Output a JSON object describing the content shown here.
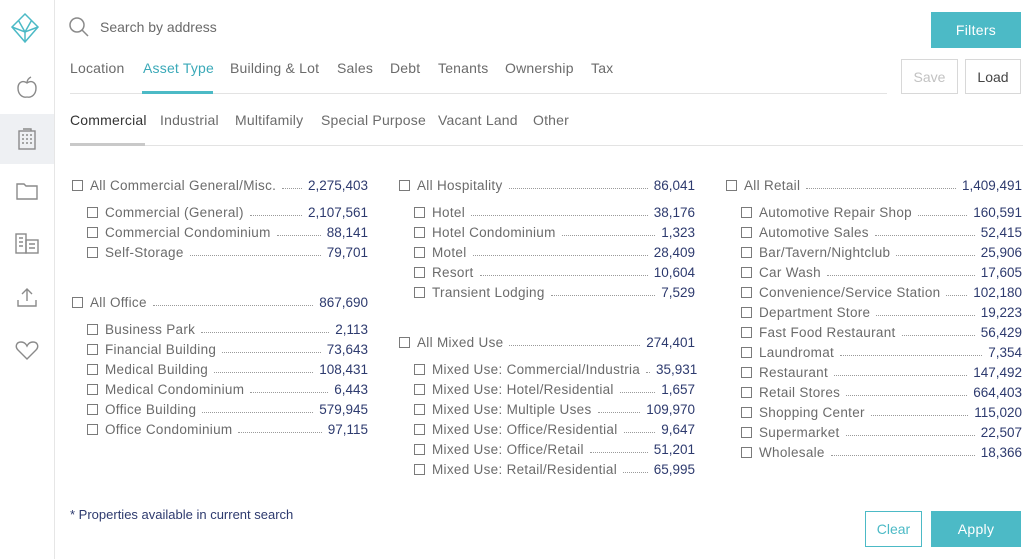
{
  "search": {
    "placeholder": "Search by address"
  },
  "header": {
    "filters_label": "Filters",
    "save_label": "Save",
    "load_label": "Load"
  },
  "tabs": [
    "Location",
    "Asset Type",
    "Building & Lot",
    "Sales",
    "Debt",
    "Tenants",
    "Ownership",
    "Tax"
  ],
  "subtabs": [
    "Commercial",
    "Industrial",
    "Multifamily",
    "Special Purpose",
    "Vacant Land",
    "Other"
  ],
  "groups": [
    {
      "label": "All Commercial General/Misc.",
      "count": "2,275,403",
      "items": [
        {
          "label": "Commercial (General)",
          "count": "2,107,561"
        },
        {
          "label": "Commercial Condominium",
          "count": "88,141"
        },
        {
          "label": "Self-Storage",
          "count": "79,701"
        }
      ]
    },
    {
      "label": "All Office",
      "count": "867,690",
      "items": [
        {
          "label": "Business Park",
          "count": "2,113"
        },
        {
          "label": "Financial Building",
          "count": "73,643"
        },
        {
          "label": "Medical Building",
          "count": "108,431"
        },
        {
          "label": "Medical Condominium",
          "count": "6,443"
        },
        {
          "label": "Office Building",
          "count": "579,945"
        },
        {
          "label": "Office Condominium",
          "count": "97,115"
        }
      ]
    },
    {
      "label": "All Hospitality",
      "count": "86,041",
      "items": [
        {
          "label": "Hotel",
          "count": "38,176"
        },
        {
          "label": "Hotel Condominium",
          "count": "1,323"
        },
        {
          "label": "Motel",
          "count": "28,409"
        },
        {
          "label": "Resort",
          "count": "10,604"
        },
        {
          "label": "Transient Lodging",
          "count": "7,529"
        }
      ]
    },
    {
      "label": "All Mixed Use",
      "count": "274,401",
      "items": [
        {
          "label": "Mixed Use: Commercial/Industrial",
          "count": "35,931"
        },
        {
          "label": "Mixed Use: Hotel/Residential",
          "count": "1,657"
        },
        {
          "label": "Mixed Use: Multiple Uses",
          "count": "109,970"
        },
        {
          "label": "Mixed Use: Office/Residential",
          "count": "9,647"
        },
        {
          "label": "Mixed Use: Office/Retail",
          "count": "51,201"
        },
        {
          "label": "Mixed Use: Retail/Residential",
          "count": "65,995"
        }
      ]
    },
    {
      "label": "All Retail",
      "count": "1,409,491",
      "items": [
        {
          "label": "Automotive Repair Shop",
          "count": "160,591"
        },
        {
          "label": "Automotive Sales",
          "count": "52,415"
        },
        {
          "label": "Bar/Tavern/Nightclub",
          "count": "25,906"
        },
        {
          "label": "Car Wash",
          "count": "17,605"
        },
        {
          "label": "Convenience/Service Station",
          "count": "102,180"
        },
        {
          "label": "Department Store",
          "count": "19,223"
        },
        {
          "label": "Fast Food Restaurant",
          "count": "56,429"
        },
        {
          "label": "Laundromat",
          "count": "7,354"
        },
        {
          "label": "Restaurant",
          "count": "147,492"
        },
        {
          "label": "Retail Stores",
          "count": "664,403"
        },
        {
          "label": "Shopping Center",
          "count": "115,020"
        },
        {
          "label": "Supermarket",
          "count": "22,507"
        },
        {
          "label": "Wholesale",
          "count": "18,366"
        }
      ]
    }
  ],
  "footnote": "* Properties available in current search",
  "footer": {
    "clear_label": "Clear",
    "apply_label": "Apply"
  },
  "sidebar": {
    "icons": [
      "logo-icon",
      "apple-icon",
      "building-icon",
      "folder-icon",
      "buildings-icon",
      "upload-icon",
      "heart-icon"
    ]
  },
  "colors": {
    "accent": "#4cbac6",
    "count_text": "#2d3a6e"
  }
}
